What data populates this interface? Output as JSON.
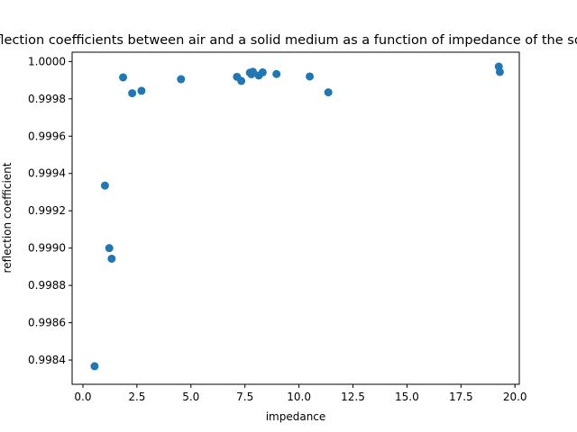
{
  "chart_data": {
    "type": "scatter",
    "title": "Reflection coefficients between air and a solid medium as a function of impedance of the solid",
    "xlabel": "impedance",
    "ylabel": "reflection coefficient",
    "xlim": [
      -0.5,
      20.2
    ],
    "ylim": [
      0.99827,
      1.00005
    ],
    "x_ticks": [
      0.0,
      2.5,
      5.0,
      7.5,
      10.0,
      12.5,
      15.0,
      17.5,
      20.0
    ],
    "x_tick_labels": [
      "0.0",
      "2.5",
      "5.0",
      "7.5",
      "10.0",
      "12.5",
      "15.0",
      "17.5",
      "20.0"
    ],
    "y_ticks": [
      0.9984,
      0.9986,
      0.9988,
      0.999,
      0.9992,
      0.9994,
      0.9996,
      0.9998,
      1.0
    ],
    "y_tick_labels": [
      "0.9984",
      "0.9986",
      "0.9988",
      "0.9990",
      "0.9992",
      "0.9994",
      "0.9996",
      "0.9998",
      "1.0000"
    ],
    "grid": false,
    "marker_color": "#1f77b4",
    "series": [
      {
        "name": "",
        "points": [
          {
            "x": 0.54,
            "y": 0.998367
          },
          {
            "x": 1.02,
            "y": 0.999335
          },
          {
            "x": 1.22,
            "y": 0.999
          },
          {
            "x": 1.33,
            "y": 0.998943
          },
          {
            "x": 1.86,
            "y": 0.999915
          },
          {
            "x": 2.28,
            "y": 0.99983
          },
          {
            "x": 2.71,
            "y": 0.999843
          },
          {
            "x": 4.54,
            "y": 0.999905
          },
          {
            "x": 7.13,
            "y": 0.999918
          },
          {
            "x": 7.33,
            "y": 0.999896
          },
          {
            "x": 7.73,
            "y": 0.99994
          },
          {
            "x": 7.8,
            "y": 0.999932
          },
          {
            "x": 7.87,
            "y": 0.999945
          },
          {
            "x": 8.14,
            "y": 0.999925
          },
          {
            "x": 8.32,
            "y": 0.999942
          },
          {
            "x": 8.96,
            "y": 0.999933
          },
          {
            "x": 10.5,
            "y": 0.99992
          },
          {
            "x": 11.36,
            "y": 0.999835
          },
          {
            "x": 19.25,
            "y": 0.999973
          },
          {
            "x": 19.3,
            "y": 0.999944
          }
        ]
      }
    ]
  }
}
